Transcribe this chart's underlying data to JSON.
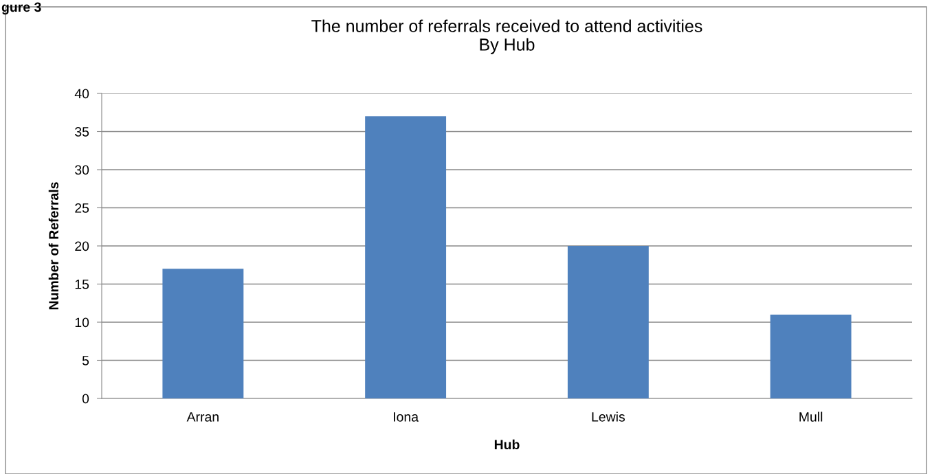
{
  "chart_data": {
    "type": "bar",
    "title": "The number of referrals received to attend activities\nBy Hub",
    "xlabel": "Hub",
    "ylabel": "Number of Referrals",
    "categories": [
      "Arran",
      "Iona",
      "Lewis",
      "Mull"
    ],
    "values": [
      17,
      37,
      20,
      11
    ],
    "color": "#4f81bd",
    "ylim": [
      0,
      40
    ],
    "yticks": [
      0,
      5,
      10,
      15,
      20,
      25,
      30,
      35,
      40
    ],
    "grid": "y",
    "legend": false,
    "annotations": [
      "gure 3"
    ]
  }
}
